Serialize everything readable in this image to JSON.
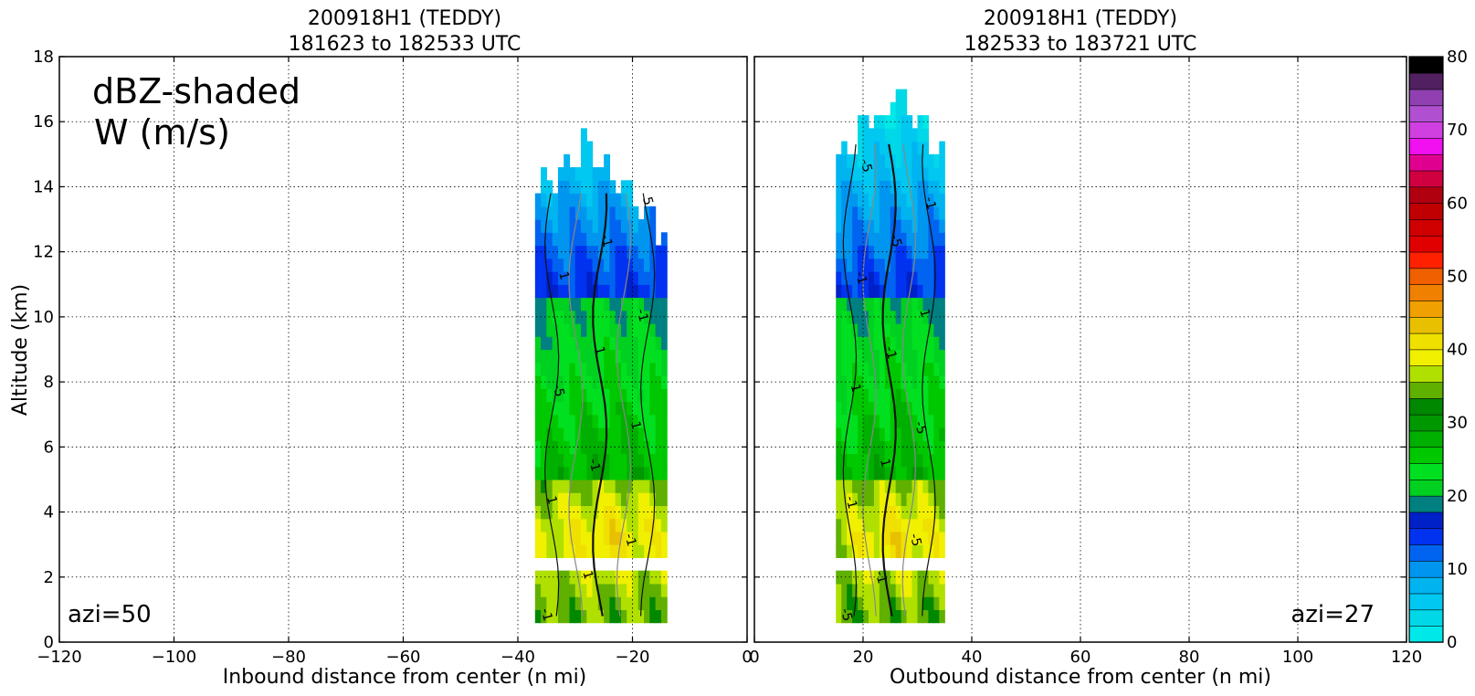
{
  "figure": {
    "ylabel": "Altitude (km)",
    "annotation_lines": [
      "dBZ-shaded",
      "W (m/s)"
    ]
  },
  "chart_data": [
    {
      "type": "heatmap",
      "title_line1": "200918H1 (TEDDY)",
      "title_line2": "181623 to 182533 UTC",
      "xlabel": "Inbound distance from center (n mi)",
      "xlim": [
        -120,
        0
      ],
      "ylim": [
        0,
        18
      ],
      "xticks": [
        -120,
        -100,
        -80,
        -60,
        -40,
        -20,
        0
      ],
      "yticks": [
        0,
        2,
        4,
        6,
        8,
        10,
        12,
        14,
        16,
        18
      ],
      "grid": true,
      "azi_label": "azi=50",
      "echo_x_range": [
        -37,
        -14
      ],
      "echo_top_km": 15.1,
      "contour_labels": [
        "-1",
        "1",
        "-1",
        "1",
        "-1",
        "1",
        "-5",
        "1",
        "-1",
        "1",
        "-1",
        "5"
      ]
    },
    {
      "type": "heatmap",
      "title_line1": "200918H1 (TEDDY)",
      "title_line2": "182533 to 183721 UTC",
      "xlabel": "Outbound distance from center (n mi)",
      "xlim": [
        0,
        120
      ],
      "ylim": [
        0,
        18
      ],
      "xticks": [
        0,
        20,
        40,
        60,
        80,
        100,
        120
      ],
      "yticks": [
        0,
        2,
        4,
        6,
        8,
        10,
        12,
        14,
        16,
        18
      ],
      "grid": true,
      "azi_label": "azi=27",
      "echo_x_range": [
        15,
        35
      ],
      "echo_top_km": 16.8,
      "contour_labels": [
        "-5",
        "-1",
        "-5",
        "-1",
        "1",
        "-5",
        "1",
        "-1",
        "1",
        "-1",
        "-5",
        "-1",
        "-5"
      ]
    }
  ],
  "colorbar": {
    "min": 0,
    "max": 80,
    "tick_labels": [
      0,
      10,
      20,
      30,
      40,
      50,
      60,
      70,
      80
    ],
    "colors": [
      "#00e8e8",
      "#00d8e8",
      "#00c8f0",
      "#00b4f0",
      "#0096f0",
      "#0064f0",
      "#0032f0",
      "#0020c8",
      "#008080",
      "#00d020",
      "#00e020",
      "#00c800",
      "#00b000",
      "#009800",
      "#008800",
      "#60b000",
      "#b0e000",
      "#f0f000",
      "#f0e000",
      "#e8c000",
      "#f0a000",
      "#f08000",
      "#f06000",
      "#ff2000",
      "#e00000",
      "#d00000",
      "#c00000",
      "#b00010",
      "#d00040",
      "#e00090",
      "#f010f0",
      "#d040e0",
      "#b050d0",
      "#9040b0",
      "#502060",
      "#000000"
    ]
  }
}
